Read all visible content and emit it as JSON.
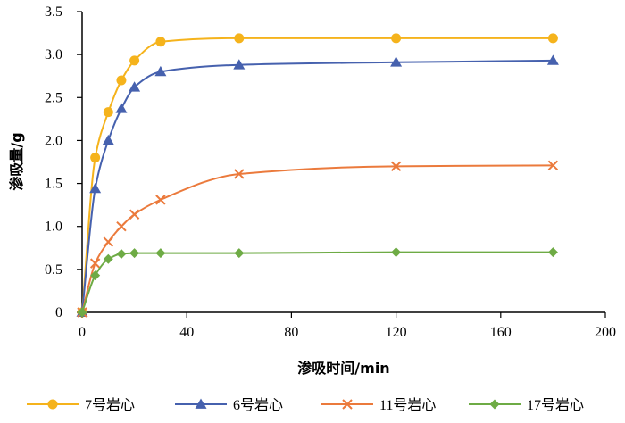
{
  "chart_data": {
    "type": "line",
    "xlabel": "渗吸时间/min",
    "ylabel": "渗吸量/g",
    "xlim": [
      0,
      200
    ],
    "ylim": [
      0,
      3.5
    ],
    "x_ticks": [
      "0",
      "40",
      "80",
      "120",
      "160",
      "200"
    ],
    "y_ticks": [
      "0",
      "0.5",
      "1.0",
      "1.5",
      "2.0",
      "2.5",
      "3.0",
      "3.5"
    ],
    "grid": false,
    "legend_position": "bottom",
    "series": [
      {
        "name": "7号岩心",
        "color": "#F5B31C",
        "marker": "circle",
        "x": [
          0,
          5,
          10,
          15,
          20,
          30,
          60,
          120,
          180
        ],
        "y": [
          0,
          1.8,
          2.33,
          2.7,
          2.93,
          3.15,
          3.19,
          3.19,
          3.19
        ]
      },
      {
        "name": "6号岩心",
        "color": "#4661AE",
        "marker": "triangle",
        "x": [
          0,
          5,
          10,
          15,
          20,
          30,
          60,
          120,
          180
        ],
        "y": [
          0,
          1.44,
          2.0,
          2.37,
          2.62,
          2.8,
          2.88,
          2.91,
          2.93
        ]
      },
      {
        "name": "11号岩心",
        "color": "#EB7A3C",
        "marker": "x",
        "x": [
          0,
          5,
          10,
          15,
          20,
          30,
          60,
          120,
          180
        ],
        "y": [
          0,
          0.57,
          0.82,
          1.0,
          1.14,
          1.31,
          1.61,
          1.7,
          1.71
        ]
      },
      {
        "name": "17号岩心",
        "color": "#6EAB45",
        "marker": "diamond",
        "x": [
          0,
          5,
          10,
          15,
          20,
          30,
          60,
          120,
          180
        ],
        "y": [
          0,
          0.43,
          0.62,
          0.68,
          0.69,
          0.69,
          0.69,
          0.7,
          0.7
        ]
      }
    ]
  }
}
